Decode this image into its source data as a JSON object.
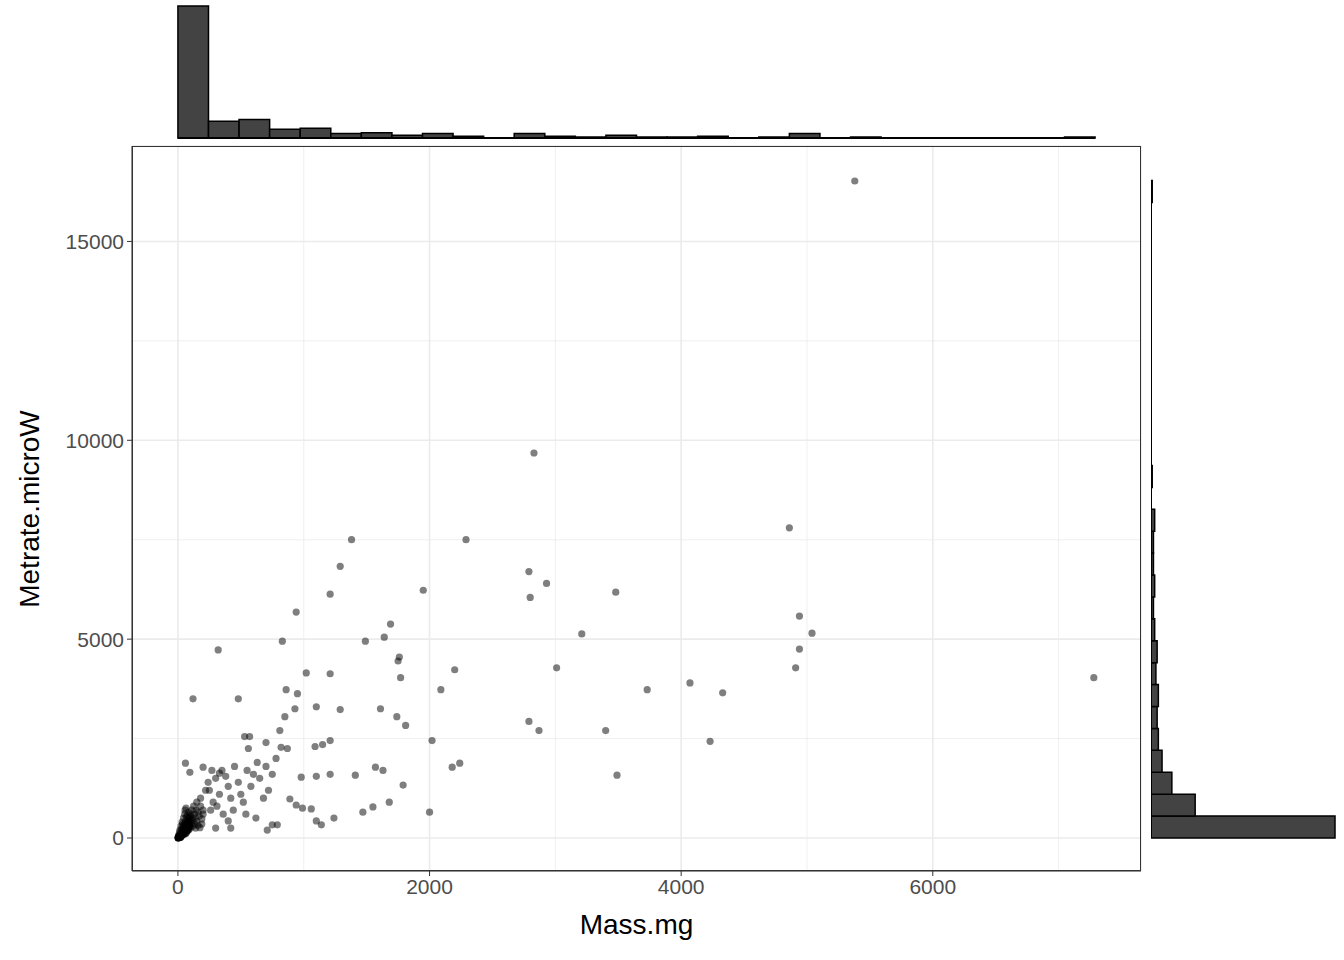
{
  "chart_data": [
    {
      "type": "scatter",
      "x_label": "Mass.mg",
      "y_label": "Metrate.microW",
      "color": "#000000",
      "marker": "circle",
      "grid": true,
      "xlim": [
        -365,
        7655
      ],
      "ylim": [
        -830,
        17400
      ],
      "xticks": [
        0,
        2000,
        4000,
        6000
      ],
      "yticks": [
        0,
        5000,
        10000,
        15000
      ],
      "x": [
        5380,
        2830,
        4860,
        1380,
        2290,
        1290,
        2790,
        2930,
        1210,
        2800,
        1950,
        3480,
        940,
        4940,
        1690,
        5040,
        3210,
        1640,
        1490,
        830,
        4940,
        320,
        1760,
        1750,
        2200,
        1020,
        1210,
        4910,
        3010,
        1770,
        7280,
        4070,
        950,
        860,
        2090,
        3730,
        4330,
        120,
        480,
        1100,
        930,
        1610,
        1290,
        850,
        1740,
        1810,
        2790,
        2870,
        3400,
        810,
        530,
        570,
        1210,
        2020,
        4230,
        1150,
        1090,
        560,
        700,
        820,
        870,
        2240,
        2180,
        60,
        200,
        95,
        330,
        1410,
        980,
        1210,
        1100,
        1570,
        1630,
        1790,
        3490,
        1680,
        1550,
        1470,
        2000,
        890,
        940,
        990,
        1060,
        1100,
        1140,
        1240,
        750,
        710,
        790,
        420,
        300,
        400,
        250,
        280,
        300,
        350,
        400,
        420,
        450,
        480,
        500,
        520,
        550,
        580,
        600,
        630,
        650,
        680,
        700,
        720,
        750,
        780,
        200,
        260,
        310,
        360,
        440,
        540,
        620,
        150,
        180,
        220,
        240,
        270,
        330,
        380,
        2,
        3,
        5,
        6,
        8,
        10,
        12,
        15,
        18,
        20,
        22,
        25,
        28,
        30,
        32,
        35,
        38,
        40,
        42,
        45,
        48,
        50,
        52,
        55,
        58,
        60,
        62,
        65,
        68,
        70,
        72,
        75,
        78,
        80,
        82,
        85,
        88,
        90,
        92,
        95,
        98,
        100,
        105,
        110,
        115,
        120,
        125,
        130,
        135,
        140,
        145,
        150,
        160,
        170,
        180,
        190,
        200,
        4,
        7,
        9,
        14,
        16,
        24,
        27,
        33,
        36,
        44,
        47,
        54,
        57,
        64,
        85,
        100,
        120,
        140,
        160,
        175,
        190,
        11,
        13,
        17,
        19,
        21,
        23,
        26,
        29,
        31,
        34,
        37,
        39,
        41,
        43,
        46,
        49,
        51,
        53,
        56,
        59,
        61,
        63,
        66,
        69,
        71,
        73,
        76,
        79,
        83,
        86,
        89,
        93,
        96,
        1,
        2,
        3
      ],
      "values": [
        16520,
        9680,
        7800,
        7500,
        7500,
        6830,
        6700,
        6400,
        6130,
        6050,
        6230,
        6180,
        5680,
        5580,
        5380,
        5150,
        5130,
        5050,
        4950,
        4950,
        4750,
        4730,
        4550,
        4450,
        4230,
        4150,
        4130,
        4280,
        4280,
        4030,
        4030,
        3900,
        3630,
        3730,
        3730,
        3730,
        3650,
        3500,
        3500,
        3300,
        3250,
        3250,
        3230,
        3050,
        3050,
        2830,
        2930,
        2700,
        2700,
        2700,
        2550,
        2550,
        2450,
        2450,
        2430,
        2350,
        2300,
        2250,
        2400,
        2280,
        2250,
        1880,
        1780,
        1880,
        1780,
        1650,
        1630,
        1580,
        1530,
        1600,
        1550,
        1780,
        1700,
        1330,
        1580,
        900,
        780,
        650,
        650,
        980,
        830,
        750,
        730,
        430,
        330,
        500,
        330,
        200,
        330,
        250,
        250,
        430,
        1200,
        900,
        1500,
        1700,
        1300,
        1000,
        1800,
        1400,
        1100,
        900,
        1700,
        1300,
        1600,
        1900,
        1500,
        1000,
        1800,
        1200,
        1600,
        2000,
        600,
        700,
        800,
        600,
        700,
        600,
        500,
        900,
        1000,
        1200,
        1400,
        1700,
        1100,
        1550,
        5,
        8,
        12,
        20,
        15,
        30,
        25,
        40,
        50,
        60,
        45,
        80,
        70,
        100,
        90,
        120,
        110,
        150,
        130,
        180,
        160,
        200,
        170,
        220,
        250,
        190,
        280,
        300,
        240,
        350,
        260,
        320,
        400,
        290,
        450,
        380,
        500,
        420,
        330,
        550,
        460,
        600,
        380,
        700,
        520,
        450,
        800,
        600,
        350,
        500,
        700,
        420,
        650,
        550,
        800,
        480,
        700,
        40,
        60,
        90,
        150,
        200,
        300,
        220,
        400,
        350,
        500,
        300,
        600,
        700,
        750,
        200,
        250,
        300,
        250,
        320,
        260,
        350,
        10,
        18,
        28,
        35,
        12,
        55,
        30,
        65,
        140,
        75,
        200,
        85,
        250,
        95,
        120,
        330,
        140,
        100,
        160,
        380,
        420,
        110,
        130,
        520,
        170,
        560,
        190,
        210,
        230,
        650,
        270,
        300,
        360,
        2,
        3,
        4
      ]
    },
    {
      "type": "histogram",
      "color": "#434343",
      "tick_labels": false,
      "xlim": [
        -365,
        7655
      ],
      "ylim": [
        0,
        150
      ],
      "bins": [
        0,
        243,
        486,
        729,
        972,
        1215,
        1458,
        1701,
        1944,
        2187,
        2430,
        2673,
        2916,
        3159,
        3402,
        3645,
        3888,
        4131,
        4374,
        4617,
        4860,
        5103,
        5346,
        5589,
        5832,
        6075,
        6318,
        6561,
        6804,
        7047,
        7290
      ],
      "values": [
        150,
        19,
        21,
        10,
        11,
        5,
        6,
        3,
        5,
        2,
        0,
        5,
        2,
        1,
        3,
        1,
        1,
        2,
        0,
        1,
        5,
        0,
        1,
        0,
        0,
        0,
        0,
        0,
        0,
        1
      ]
    },
    {
      "type": "histogram",
      "orientation": "horizontal",
      "color": "#434343",
      "tick_labels": false,
      "xlim": [
        0,
        150
      ],
      "ylim": [
        -830,
        17400
      ],
      "bins": [
        0,
        551,
        1102,
        1653,
        2204,
        2755,
        3306,
        3857,
        4408,
        4959,
        5510,
        6061,
        6612,
        7163,
        7714,
        8265,
        8816,
        9367,
        9918,
        10469,
        11020,
        11571,
        12122,
        12673,
        13224,
        13775,
        14326,
        14877,
        15428,
        15979,
        16530
      ],
      "values": [
        150,
        36,
        17,
        9,
        6,
        5,
        6,
        4,
        5,
        3,
        2,
        3,
        2,
        2,
        3,
        0,
        1,
        0,
        0,
        0,
        0,
        0,
        0,
        0,
        0,
        0,
        0,
        0,
        0,
        1
      ]
    }
  ]
}
